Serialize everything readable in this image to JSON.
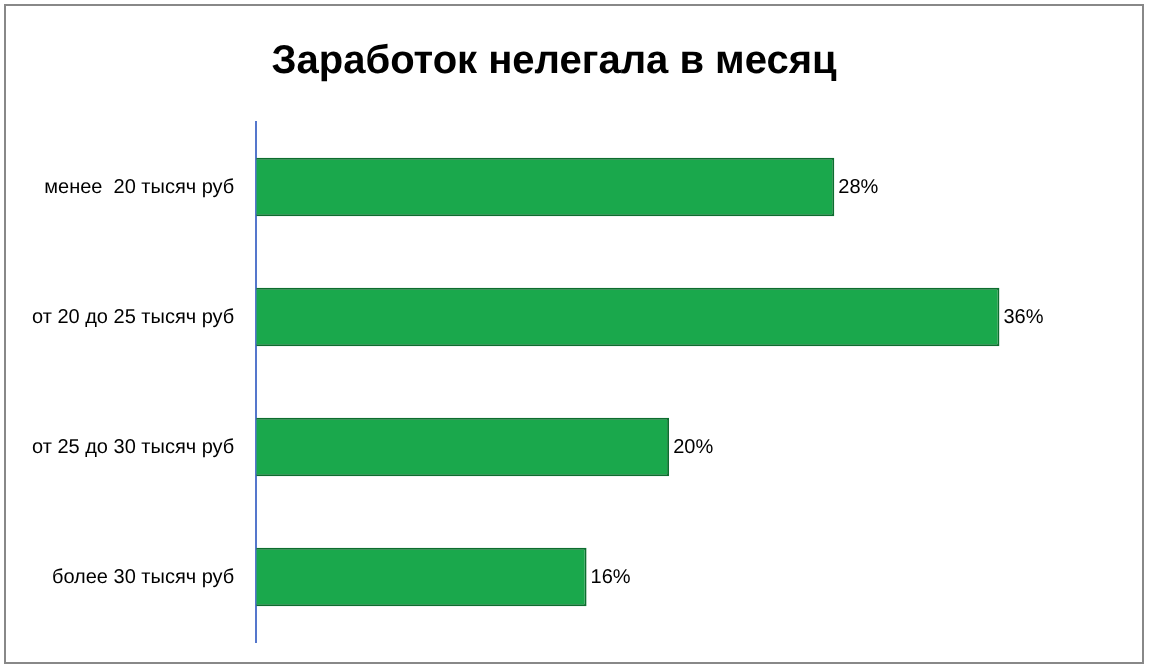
{
  "chart_data": {
    "type": "bar",
    "orientation": "horizontal",
    "title": "Заработок нелегала в месяц",
    "categories": [
      "менее  20 тысяч руб",
      "от 20 до 25 тысяч руб",
      "от 25 до 30 тысяч руб",
      "более 30 тысяч руб"
    ],
    "values": [
      28,
      36,
      20,
      16
    ],
    "color": "#1aa84c",
    "value_labels": [
      "28%",
      "36%",
      "20%",
      "16%"
    ],
    "grid": false,
    "legend": false
  }
}
